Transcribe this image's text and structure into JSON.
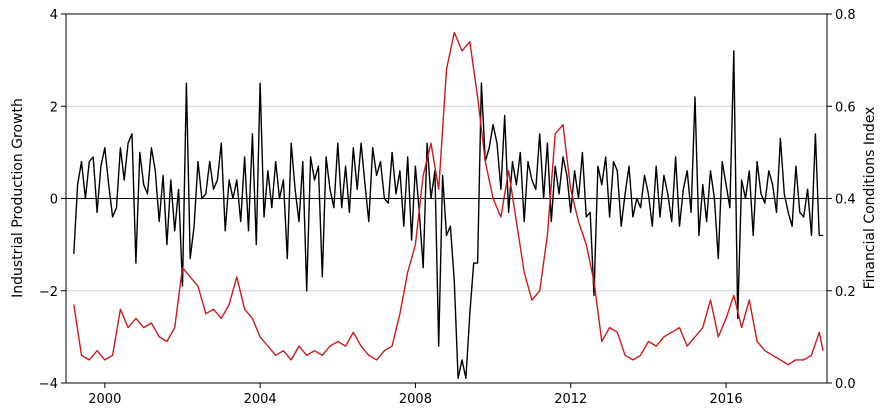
{
  "chart_data": {
    "type": "line",
    "title": "",
    "xlabel": "",
    "ylabel_left": "Industrial Production Growth",
    "ylabel_right": "Financial Conditions Index",
    "x_range": [
      1999.0,
      2018.6
    ],
    "x_ticks": [
      2000,
      2004,
      2008,
      2012,
      2016
    ],
    "ylim_left": [
      -4,
      4
    ],
    "y_ticks_left": [
      {
        "value": 4,
        "label": "4"
      },
      {
        "value": 2,
        "label": "2"
      },
      {
        "value": 0,
        "label": "0"
      },
      {
        "value": -2,
        "label": "−2"
      },
      {
        "value": -4,
        "label": "−4"
      }
    ],
    "ylim_right": [
      0.0,
      0.8
    ],
    "y_ticks_right": [
      {
        "value": 0.8,
        "label": "0.8"
      },
      {
        "value": 0.6,
        "label": "0.6"
      },
      {
        "value": 0.4,
        "label": "0.4"
      },
      {
        "value": 0.2,
        "label": "0.2"
      },
      {
        "value": 0.0,
        "label": "0.0"
      }
    ],
    "grid": "horizontal",
    "zero_line": true,
    "series": [
      {
        "axis": "left",
        "color": "#000000",
        "x": [
          1999.2,
          1999.3,
          1999.4,
          1999.5,
          1999.6,
          1999.7,
          1999.8,
          1999.9,
          2000.0,
          2000.1,
          2000.2,
          2000.3,
          2000.4,
          2000.5,
          2000.6,
          2000.7,
          2000.8,
          2000.9,
          2001.0,
          2001.1,
          2001.2,
          2001.3,
          2001.4,
          2001.5,
          2001.6,
          2001.7,
          2001.8,
          2001.9,
          2002.0,
          2002.1,
          2002.2,
          2002.3,
          2002.4,
          2002.5,
          2002.6,
          2002.7,
          2002.8,
          2002.9,
          2003.0,
          2003.1,
          2003.2,
          2003.3,
          2003.4,
          2003.5,
          2003.6,
          2003.7,
          2003.8,
          2003.9,
          2004.0,
          2004.1,
          2004.2,
          2004.3,
          2004.4,
          2004.5,
          2004.6,
          2004.7,
          2004.8,
          2004.9,
          2005.0,
          2005.1,
          2005.2,
          2005.3,
          2005.4,
          2005.5,
          2005.6,
          2005.7,
          2005.8,
          2005.9,
          2006.0,
          2006.1,
          2006.2,
          2006.3,
          2006.4,
          2006.5,
          2006.6,
          2006.7,
          2006.8,
          2006.9,
          2007.0,
          2007.1,
          2007.2,
          2007.3,
          2007.4,
          2007.5,
          2007.6,
          2007.7,
          2007.8,
          2007.9,
          2008.0,
          2008.1,
          2008.2,
          2008.3,
          2008.4,
          2008.5,
          2008.6,
          2008.7,
          2008.8,
          2008.9,
          2009.0,
          2009.1,
          2009.2,
          2009.3,
          2009.4,
          2009.5,
          2009.6,
          2009.7,
          2009.8,
          2009.9,
          2010.0,
          2010.1,
          2010.2,
          2010.3,
          2010.4,
          2010.5,
          2010.6,
          2010.7,
          2010.8,
          2010.9,
          2011.0,
          2011.1,
          2011.2,
          2011.3,
          2011.4,
          2011.5,
          2011.6,
          2011.7,
          2011.8,
          2011.9,
          2012.0,
          2012.1,
          2012.2,
          2012.3,
          2012.4,
          2012.5,
          2012.6,
          2012.7,
          2012.8,
          2012.9,
          2013.0,
          2013.1,
          2013.2,
          2013.3,
          2013.4,
          2013.5,
          2013.6,
          2013.7,
          2013.8,
          2013.9,
          2014.0,
          2014.1,
          2014.2,
          2014.3,
          2014.4,
          2014.5,
          2014.6,
          2014.7,
          2014.8,
          2014.9,
          2015.0,
          2015.1,
          2015.2,
          2015.3,
          2015.4,
          2015.5,
          2015.6,
          2015.7,
          2015.8,
          2015.9,
          2016.0,
          2016.1,
          2016.2,
          2016.3,
          2016.4,
          2016.5,
          2016.6,
          2016.7,
          2016.8,
          2016.9,
          2017.0,
          2017.1,
          2017.2,
          2017.3,
          2017.4,
          2017.5,
          2017.6,
          2017.7,
          2017.8,
          2017.9,
          2018.0,
          2018.1,
          2018.2,
          2018.3,
          2018.4,
          2018.5
        ],
        "y": [
          -1.2,
          0.3,
          0.8,
          0.0,
          0.8,
          0.9,
          -0.3,
          0.7,
          1.1,
          0.3,
          -0.4,
          -0.2,
          1.1,
          0.4,
          1.2,
          1.4,
          -1.4,
          1.0,
          0.3,
          0.1,
          1.1,
          0.6,
          -0.5,
          0.5,
          -1.0,
          0.4,
          -0.7,
          0.2,
          -1.9,
          2.5,
          -1.3,
          -0.6,
          0.8,
          0.0,
          0.1,
          0.8,
          0.2,
          0.4,
          1.2,
          -0.7,
          0.4,
          0.0,
          0.4,
          -0.5,
          0.9,
          -0.7,
          1.4,
          -1.0,
          2.5,
          -0.4,
          0.6,
          -0.2,
          0.8,
          0.0,
          0.4,
          -1.3,
          1.2,
          0.2,
          -0.5,
          0.8,
          -2.0,
          0.9,
          0.4,
          0.7,
          -1.7,
          0.9,
          0.2,
          -0.2,
          1.2,
          -0.2,
          0.7,
          -0.3,
          1.1,
          0.2,
          1.2,
          0.3,
          -0.5,
          1.1,
          0.5,
          0.8,
          0.0,
          -0.1,
          1.0,
          0.1,
          0.6,
          -0.6,
          0.9,
          -0.9,
          0.7,
          -0.3,
          -1.5,
          1.2,
          0.0,
          0.6,
          -3.2,
          0.5,
          -0.8,
          -0.6,
          -1.8,
          -3.9,
          -3.5,
          -3.9,
          -2.5,
          -1.4,
          -1.4,
          2.5,
          0.8,
          1.1,
          1.6,
          1.2,
          0.2,
          1.8,
          -0.3,
          0.8,
          0.3,
          1.0,
          -0.5,
          0.8,
          0.4,
          0.2,
          1.4,
          0.0,
          1.2,
          -0.5,
          0.7,
          0.1,
          0.9,
          0.5,
          -0.3,
          0.6,
          0.0,
          1.0,
          -0.4,
          -0.3,
          -2.1,
          0.7,
          0.3,
          0.9,
          -0.4,
          0.8,
          0.6,
          -0.6,
          0.1,
          0.7,
          -0.4,
          0.0,
          -0.2,
          0.5,
          0.1,
          -0.6,
          0.7,
          -0.4,
          0.5,
          0.1,
          -0.5,
          0.9,
          -0.6,
          0.2,
          0.6,
          -0.3,
          2.2,
          -0.8,
          0.3,
          -0.5,
          0.6,
          0.0,
          -1.3,
          0.8,
          0.3,
          -0.2,
          3.2,
          -2.6,
          0.4,
          0.0,
          0.6,
          -0.8,
          0.8,
          0.1,
          -0.1,
          0.6,
          0.3,
          -0.3,
          1.3,
          0.1,
          -0.3,
          -0.6,
          0.7,
          -0.3,
          -0.4,
          0.2,
          -0.8,
          1.4,
          -0.8,
          -0.8
        ]
      },
      {
        "axis": "right",
        "color": "#cc1a1a",
        "x": [
          1999.2,
          1999.4,
          1999.6,
          1999.8,
          2000.0,
          2000.2,
          2000.4,
          2000.6,
          2000.8,
          2001.0,
          2001.2,
          2001.4,
          2001.6,
          2001.8,
          2002.0,
          2002.2,
          2002.4,
          2002.6,
          2002.8,
          2003.0,
          2003.2,
          2003.4,
          2003.6,
          2003.8,
          2004.0,
          2004.2,
          2004.4,
          2004.6,
          2004.8,
          2005.0,
          2005.2,
          2005.4,
          2005.6,
          2005.8,
          2006.0,
          2006.2,
          2006.4,
          2006.6,
          2006.8,
          2007.0,
          2007.2,
          2007.4,
          2007.6,
          2007.8,
          2008.0,
          2008.2,
          2008.4,
          2008.6,
          2008.8,
          2009.0,
          2009.2,
          2009.4,
          2009.6,
          2009.8,
          2010.0,
          2010.2,
          2010.4,
          2010.6,
          2010.8,
          2011.0,
          2011.2,
          2011.4,
          2011.6,
          2011.8,
          2012.0,
          2012.2,
          2012.4,
          2012.6,
          2012.8,
          2013.0,
          2013.2,
          2013.4,
          2013.6,
          2013.8,
          2014.0,
          2014.2,
          2014.4,
          2014.6,
          2014.8,
          2015.0,
          2015.2,
          2015.4,
          2015.6,
          2015.8,
          2016.0,
          2016.2,
          2016.4,
          2016.6,
          2016.8,
          2017.0,
          2017.2,
          2017.4,
          2017.6,
          2017.8,
          2018.0,
          2018.2,
          2018.4,
          2018.5
        ],
        "y": [
          0.17,
          0.06,
          0.05,
          0.07,
          0.05,
          0.06,
          0.16,
          0.12,
          0.14,
          0.12,
          0.13,
          0.1,
          0.09,
          0.12,
          0.25,
          0.23,
          0.21,
          0.15,
          0.16,
          0.14,
          0.17,
          0.23,
          0.16,
          0.14,
          0.1,
          0.08,
          0.06,
          0.07,
          0.05,
          0.08,
          0.06,
          0.07,
          0.06,
          0.08,
          0.09,
          0.08,
          0.11,
          0.08,
          0.06,
          0.05,
          0.07,
          0.08,
          0.15,
          0.24,
          0.3,
          0.45,
          0.52,
          0.42,
          0.68,
          0.76,
          0.72,
          0.74,
          0.62,
          0.48,
          0.4,
          0.36,
          0.46,
          0.35,
          0.24,
          0.18,
          0.2,
          0.32,
          0.54,
          0.56,
          0.42,
          0.35,
          0.3,
          0.22,
          0.09,
          0.12,
          0.11,
          0.06,
          0.05,
          0.06,
          0.09,
          0.08,
          0.1,
          0.11,
          0.12,
          0.08,
          0.1,
          0.12,
          0.18,
          0.1,
          0.14,
          0.19,
          0.12,
          0.18,
          0.09,
          0.07,
          0.06,
          0.05,
          0.04,
          0.05,
          0.05,
          0.06,
          0.11,
          0.07
        ]
      }
    ]
  }
}
